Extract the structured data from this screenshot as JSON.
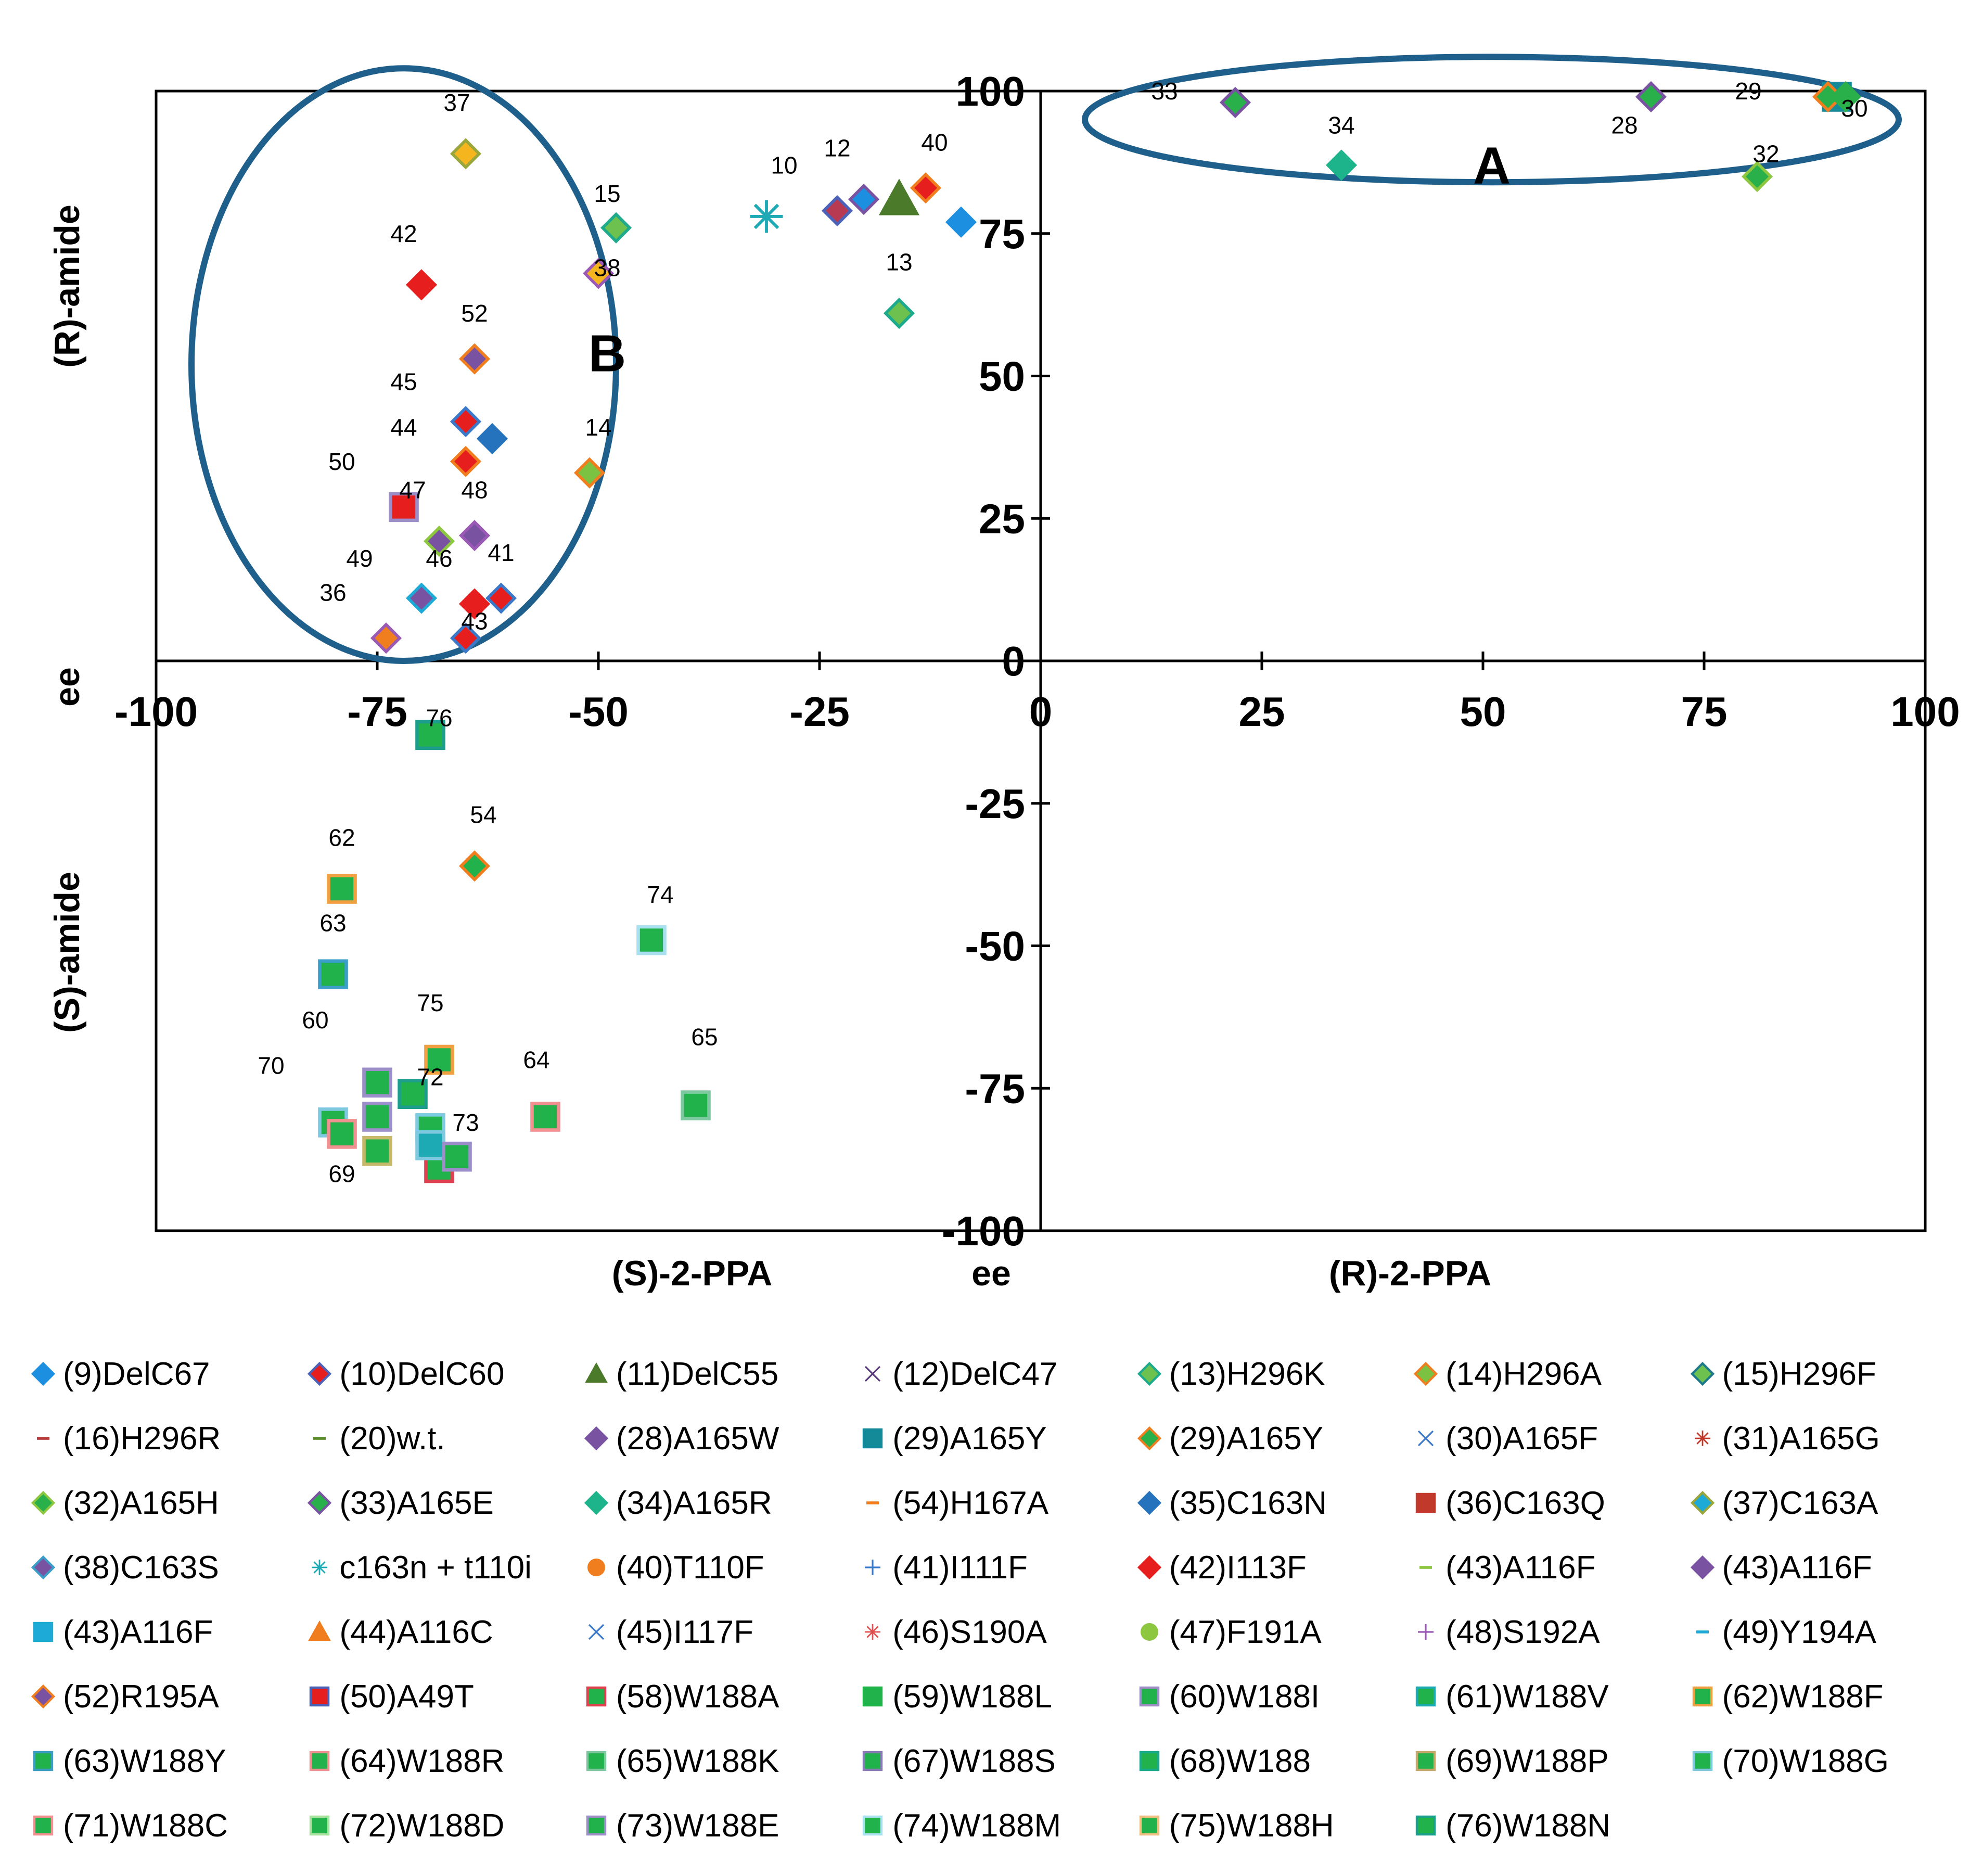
{
  "chart_data": {
    "type": "scatter",
    "xlim": [
      -100,
      100
    ],
    "ylim": [
      -100,
      100
    ],
    "x_ticks": [
      -100,
      -75,
      -50,
      -25,
      0,
      25,
      50,
      75,
      100
    ],
    "x_tick_labels": [
      "-100",
      "-75",
      "-50",
      "-25",
      "0",
      "25",
      "50",
      "75",
      "100"
    ],
    "y_ticks": [
      -100,
      -75,
      -50,
      -25,
      0,
      25,
      50,
      75,
      100
    ],
    "y_tick_labels": [
      "-100",
      "-75",
      "-50",
      "-25",
      "0",
      "25",
      "50",
      "75",
      "100"
    ],
    "grid": false,
    "x_axis_labels": {
      "left": "(S)-2-PPA",
      "center": "ee",
      "right": "(R)-2-PPA"
    },
    "y_axis_labels": {
      "top": "(R)-amide",
      "center": "ee",
      "bottom": "(S)-amide"
    },
    "regions": [
      {
        "label": "A",
        "center": [
          51,
          95
        ],
        "rx": 46,
        "ry": 11
      },
      {
        "label": "B",
        "center": [
          -72,
          52
        ],
        "rx": 24,
        "ry": 52
      }
    ],
    "points": [
      {
        "x": 22,
        "y": 98,
        "shape": "diamond",
        "fill": "#2ab04a",
        "stroke": "#7a52a2",
        "label": "33",
        "lx": 14,
        "ly": 100
      },
      {
        "x": 34,
        "y": 87,
        "shape": "diamond",
        "fill": "#1db38b",
        "stroke": "#1db38b",
        "label": "34",
        "lx": 34,
        "ly": 94
      },
      {
        "x": 69,
        "y": 99,
        "shape": "diamond",
        "fill": "#2ab04a",
        "stroke": "#7a52a2",
        "label": "28",
        "lx": 66,
        "ly": 94
      },
      {
        "x": 90,
        "y": 99,
        "shape": "square",
        "fill": "#148a99",
        "stroke": "#148a99",
        "label": "29",
        "lx": 80,
        "ly": 100
      },
      {
        "x": 89,
        "y": 99,
        "shape": "diamond",
        "fill": "#2ab04a",
        "stroke": "#f07d1e",
        "label": "",
        "lx": 0,
        "ly": 0
      },
      {
        "x": 91,
        "y": 99,
        "shape": "diamond",
        "fill": "#2ab04a",
        "stroke": "#2ab04a",
        "label": "30",
        "lx": 92,
        "ly": 97
      },
      {
        "x": 81,
        "y": 85,
        "shape": "diamond",
        "fill": "#2ab04a",
        "stroke": "#8dc63f",
        "label": "32",
        "lx": 82,
        "ly": 89
      },
      {
        "x": -65,
        "y": 89,
        "shape": "diamond",
        "fill": "#f5b51f",
        "stroke": "#9aa63a",
        "label": "37",
        "lx": -66,
        "ly": 98
      },
      {
        "x": -48,
        "y": 76,
        "shape": "diamond",
        "fill": "#6cc14f",
        "stroke": "#1daa8c",
        "label": "15",
        "lx": -49,
        "ly": 82
      },
      {
        "x": -50,
        "y": 68,
        "shape": "diamond",
        "fill": "#f5b51f",
        "stroke": "#9b59b6",
        "label": "38",
        "lx": -49,
        "ly": 69
      },
      {
        "x": -70,
        "y": 66,
        "shape": "diamond",
        "fill": "#e61e1e",
        "stroke": "#e61e1e",
        "label": "42",
        "lx": -72,
        "ly": 75
      },
      {
        "x": -64,
        "y": 53,
        "shape": "diamond",
        "fill": "#7a52a2",
        "stroke": "#f07d1e",
        "label": "52",
        "lx": -64,
        "ly": 61
      },
      {
        "x": -65,
        "y": 42,
        "shape": "diamond",
        "fill": "#e61e1e",
        "stroke": "#3a78c9",
        "label": "45",
        "lx": -72,
        "ly": 49
      },
      {
        "x": -62,
        "y": 39,
        "shape": "diamond",
        "fill": "#2673bd",
        "stroke": "#2673bd",
        "label": "44",
        "lx": -72,
        "ly": 41
      },
      {
        "x": -65,
        "y": 35,
        "shape": "diamond",
        "fill": "#e61e1e",
        "stroke": "#f07d1e",
        "label": "",
        "lx": 0,
        "ly": 0
      },
      {
        "x": -51,
        "y": 33,
        "shape": "diamond",
        "fill": "#7cc242",
        "stroke": "#f07d1e",
        "label": "14",
        "lx": -50,
        "ly": 41
      },
      {
        "x": -72,
        "y": 27,
        "shape": "square",
        "fill": "#e61e1e",
        "stroke": "#9b8ec9",
        "label": "50",
        "lx": -79,
        "ly": 35
      },
      {
        "x": -68,
        "y": 21,
        "shape": "diamond",
        "fill": "#7a52a2",
        "stroke": "#8dc63f",
        "label": "47",
        "lx": -71,
        "ly": 30
      },
      {
        "x": -64,
        "y": 22,
        "shape": "diamond",
        "fill": "#7a52a2",
        "stroke": "#9b59b6",
        "label": "48",
        "lx": -64,
        "ly": 30
      },
      {
        "x": -70,
        "y": 11,
        "shape": "diamond",
        "fill": "#7a52a2",
        "stroke": "#1daad6",
        "label": "49",
        "lx": -77,
        "ly": 18
      },
      {
        "x": -64,
        "y": 10,
        "shape": "diamond",
        "fill": "#e61e1e",
        "stroke": "#e61e1e",
        "label": "46",
        "lx": -68,
        "ly": 18
      },
      {
        "x": -61,
        "y": 11,
        "shape": "diamond",
        "fill": "#e61e1e",
        "stroke": "#3a78c9",
        "label": "41",
        "lx": -61,
        "ly": 19
      },
      {
        "x": -74,
        "y": 4,
        "shape": "diamond",
        "fill": "#f07d1e",
        "stroke": "#9b59b6",
        "label": "36",
        "lx": -80,
        "ly": 12
      },
      {
        "x": -65,
        "y": 4,
        "shape": "diamond",
        "fill": "#8dc63f",
        "stroke": "#c7b86a",
        "label": "",
        "lx": 0,
        "ly": 0
      },
      {
        "x": -65,
        "y": 4,
        "shape": "diamond",
        "fill": "#e61e1e",
        "stroke": "#3a78c9",
        "label": "43",
        "lx": -64,
        "ly": 7
      },
      {
        "x": -31,
        "y": 78,
        "shape": "star",
        "fill": "#1daab4",
        "stroke": "#1daab4",
        "label": "10",
        "lx": -29,
        "ly": 87
      },
      {
        "x": -23,
        "y": 79,
        "shape": "diamond",
        "fill": "#b83a52",
        "stroke": "#4b62b8",
        "label": "12",
        "lx": -23,
        "ly": 90
      },
      {
        "x": -20,
        "y": 81,
        "shape": "diamond",
        "fill": "#1d8fe0",
        "stroke": "#7a52a2",
        "label": "",
        "lx": 0,
        "ly": 0
      },
      {
        "x": -16,
        "y": 81,
        "shape": "triangle",
        "fill": "#4a7a2a",
        "stroke": "#4a7a2a",
        "label": "",
        "lx": 0,
        "ly": 0
      },
      {
        "x": -13,
        "y": 83,
        "shape": "diamond",
        "fill": "#e61e1e",
        "stroke": "#f07d1e",
        "label": "40",
        "lx": -12,
        "ly": 91
      },
      {
        "x": -9,
        "y": 77,
        "shape": "diamond",
        "fill": "#1d8fe0",
        "stroke": "#1d8fe0",
        "label": "",
        "lx": 0,
        "ly": 0
      },
      {
        "x": -16,
        "y": 61,
        "shape": "diamond",
        "fill": "#6cc14f",
        "stroke": "#1daa8c",
        "label": "13",
        "lx": -16,
        "ly": 70
      },
      {
        "x": -69,
        "y": -13,
        "shape": "square",
        "fill": "#21b24b",
        "stroke": "#1d9e8c",
        "label": "76",
        "lx": -68,
        "ly": -10
      },
      {
        "x": -64,
        "y": -36,
        "shape": "diamond",
        "fill": "#21b24b",
        "stroke": "#f07d1e",
        "label": "54",
        "lx": -63,
        "ly": -27
      },
      {
        "x": -79,
        "y": -40,
        "shape": "square",
        "fill": "#21b24b",
        "stroke": "#f0a040",
        "label": "62",
        "lx": -79,
        "ly": -31
      },
      {
        "x": -80,
        "y": -55,
        "shape": "square",
        "fill": "#21b24b",
        "stroke": "#3a9ec9",
        "label": "63",
        "lx": -80,
        "ly": -46
      },
      {
        "x": -44,
        "y": -49,
        "shape": "square",
        "fill": "#21b24b",
        "stroke": "#a8e0f0",
        "label": "74",
        "lx": -43,
        "ly": -41
      },
      {
        "x": -68,
        "y": -70,
        "shape": "square",
        "fill": "#21b24b",
        "stroke": "#f0a040",
        "label": "75",
        "lx": -69,
        "ly": -60
      },
      {
        "x": -39,
        "y": -78,
        "shape": "square",
        "fill": "#21b24b",
        "stroke": "#7ec8a0",
        "label": "65",
        "lx": -38,
        "ly": -66
      },
      {
        "x": -56,
        "y": -80,
        "shape": "square",
        "fill": "#21b24b",
        "stroke": "#f09090",
        "label": "64",
        "lx": -57,
        "ly": -70
      },
      {
        "x": -75,
        "y": -74,
        "shape": "square",
        "fill": "#21b24b",
        "stroke": "#9b8ec9",
        "label": "60",
        "lx": -82,
        "ly": -63
      },
      {
        "x": -71,
        "y": -76,
        "shape": "square",
        "fill": "#21b24b",
        "stroke": "#1d9e8c",
        "label": "72",
        "lx": -69,
        "ly": -73
      },
      {
        "x": -80,
        "y": -81,
        "shape": "square",
        "fill": "#21b24b",
        "stroke": "#7ec8e0",
        "label": "70",
        "lx": -87,
        "ly": -71
      },
      {
        "x": -75,
        "y": -80,
        "shape": "square",
        "fill": "#21b24b",
        "stroke": "#9b8ec9",
        "label": "",
        "lx": 0,
        "ly": 0
      },
      {
        "x": -79,
        "y": -83,
        "shape": "square",
        "fill": "#21b24b",
        "stroke": "#f09090",
        "label": "69",
        "lx": -79,
        "ly": -90
      },
      {
        "x": -75,
        "y": -86,
        "shape": "square",
        "fill": "#21b24b",
        "stroke": "#c7b86a",
        "label": "",
        "lx": 0,
        "ly": 0
      },
      {
        "x": -69,
        "y": -82,
        "shape": "square",
        "fill": "#21b24b",
        "stroke": "#7ec8e0",
        "label": "",
        "lx": 0,
        "ly": 0
      },
      {
        "x": -68,
        "y": -89,
        "shape": "square",
        "fill": "#21b24b",
        "stroke": "#e04050",
        "label": "",
        "lx": 0,
        "ly": 0
      },
      {
        "x": -69,
        "y": -85,
        "shape": "square",
        "fill": "#1daab4",
        "stroke": "#7ec8e0",
        "label": "",
        "lx": 0,
        "ly": 0
      },
      {
        "x": -66,
        "y": -87,
        "shape": "square",
        "fill": "#21b24b",
        "stroke": "#9b8ec9",
        "label": "73",
        "lx": -65,
        "ly": -81
      }
    ],
    "legend": [
      {
        "label": "(9)DelC67",
        "shape": "diamond",
        "fill": "#1d8fe0",
        "stroke": "#1d8fe0"
      },
      {
        "label": "(10)DelC60",
        "shape": "diamond",
        "fill": "#e61e1e",
        "stroke": "#4b62b8"
      },
      {
        "label": "(11)DelC55",
        "shape": "triangle",
        "fill": "#4a7a2a",
        "stroke": "#4a7a2a"
      },
      {
        "label": "(12)DelC47",
        "shape": "x",
        "fill": "#5a3a7a",
        "stroke": "#5a3a7a"
      },
      {
        "label": "(13)H296K",
        "shape": "diamond",
        "fill": "#6cc14f",
        "stroke": "#1daa8c"
      },
      {
        "label": "(14)H296A",
        "shape": "diamond",
        "fill": "#7cc242",
        "stroke": "#f07d1e"
      },
      {
        "label": "(15)H296F",
        "shape": "diamond",
        "fill": "#6cc14f",
        "stroke": "#1d7a8a"
      },
      {
        "label": "(16)H296R",
        "shape": "dash",
        "fill": "#b83a3a",
        "stroke": "#b83a3a"
      },
      {
        "label": "(20)w.t.",
        "shape": "dash",
        "fill": "#5a8a2a",
        "stroke": "#5a8a2a"
      },
      {
        "label": "(28)A165W",
        "shape": "diamond",
        "fill": "#7a52a2",
        "stroke": "#7a52a2"
      },
      {
        "label": "(29)A165Y",
        "shape": "square",
        "fill": "#148a99",
        "stroke": "#148a99"
      },
      {
        "label": "(29)A165Y",
        "shape": "diamond",
        "fill": "#2ab04a",
        "stroke": "#f07d1e"
      },
      {
        "label": "(30)A165F",
        "shape": "x",
        "fill": "#3a78c9",
        "stroke": "#3a78c9"
      },
      {
        "label": "(31)A165G",
        "shape": "star",
        "fill": "#c0392b",
        "stroke": "#c0392b"
      },
      {
        "label": "(32)A165H",
        "shape": "diamond",
        "fill": "#2ab04a",
        "stroke": "#8dc63f"
      },
      {
        "label": "(33)A165E",
        "shape": "diamond",
        "fill": "#2ab04a",
        "stroke": "#7a52a2"
      },
      {
        "label": "(34)A165R",
        "shape": "diamond",
        "fill": "#1db38b",
        "stroke": "#1db38b"
      },
      {
        "label": "(54)H167A",
        "shape": "dash",
        "fill": "#f07d1e",
        "stroke": "#f07d1e"
      },
      {
        "label": "(35)C163N",
        "shape": "diamond",
        "fill": "#2673bd",
        "stroke": "#2673bd"
      },
      {
        "label": "(36)C163Q",
        "shape": "square",
        "fill": "#c0392b",
        "stroke": "#c0392b"
      },
      {
        "label": "(37)C163A",
        "shape": "diamond",
        "fill": "#1daad6",
        "stroke": "#9aa63a"
      },
      {
        "label": "(38)C163S",
        "shape": "diamond",
        "fill": "#7a52a2",
        "stroke": "#3a9ec9"
      },
      {
        "label": "c163n + t110i",
        "shape": "star",
        "fill": "#1daab4",
        "stroke": "#1daab4"
      },
      {
        "label": "(40)T110F",
        "shape": "circle",
        "fill": "#f07d1e",
        "stroke": "#f07d1e"
      },
      {
        "label": "(41)I111F",
        "shape": "plus",
        "fill": "#3a78c9",
        "stroke": "#3a78c9"
      },
      {
        "label": "(42)I113F",
        "shape": "diamond",
        "fill": "#e61e1e",
        "stroke": "#e61e1e"
      },
      {
        "label": "(43)A116F",
        "shape": "dash",
        "fill": "#8dc63f",
        "stroke": "#8dc63f"
      },
      {
        "label": "(43)A116F",
        "shape": "diamond",
        "fill": "#7a52a2",
        "stroke": "#7a52a2"
      },
      {
        "label": "(43)A116F",
        "shape": "square",
        "fill": "#1daad6",
        "stroke": "#1daad6"
      },
      {
        "label": "(44)A116C",
        "shape": "triangle",
        "fill": "#f07d1e",
        "stroke": "#f07d1e"
      },
      {
        "label": "(45)I117F",
        "shape": "x",
        "fill": "#3a78c9",
        "stroke": "#3a78c9"
      },
      {
        "label": "(46)S190A",
        "shape": "star",
        "fill": "#e05050",
        "stroke": "#e05050"
      },
      {
        "label": "(47)F191A",
        "shape": "circle",
        "fill": "#8dc63f",
        "stroke": "#8dc63f"
      },
      {
        "label": "(48)S192A",
        "shape": "plus",
        "fill": "#9b59b6",
        "stroke": "#9b59b6"
      },
      {
        "label": "(49)Y194A",
        "shape": "dash",
        "fill": "#1daad6",
        "stroke": "#1daad6"
      },
      {
        "label": "(52)R195A",
        "shape": "diamond",
        "fill": "#7a52a2",
        "stroke": "#f07d1e"
      },
      {
        "label": "(50)A49T",
        "shape": "square",
        "fill": "#e61e1e",
        "stroke": "#4b62b8"
      },
      {
        "label": "(58)W188A",
        "shape": "square",
        "fill": "#21b24b",
        "stroke": "#e04050"
      },
      {
        "label": "(59)W188L",
        "shape": "square",
        "fill": "#21b24b",
        "stroke": "#21b24b"
      },
      {
        "label": "(60)W188I",
        "shape": "square",
        "fill": "#21b24b",
        "stroke": "#9b8ec9"
      },
      {
        "label": "(61)W188V",
        "shape": "square",
        "fill": "#21b24b",
        "stroke": "#1daab4"
      },
      {
        "label": "(62)W188F",
        "shape": "square",
        "fill": "#21b24b",
        "stroke": "#f0a040"
      },
      {
        "label": "(63)W188Y",
        "shape": "square",
        "fill": "#21b24b",
        "stroke": "#3a9ec9"
      },
      {
        "label": "(64)W188R",
        "shape": "square",
        "fill": "#21b24b",
        "stroke": "#f09090"
      },
      {
        "label": "(65)W188K",
        "shape": "square",
        "fill": "#21b24b",
        "stroke": "#7ec8a0"
      },
      {
        "label": "(67)W188S",
        "shape": "square",
        "fill": "#21b24b",
        "stroke": "#8a7ab8"
      },
      {
        "label": "(68)W188",
        "shape": "square",
        "fill": "#21b24b",
        "stroke": "#1daa8c"
      },
      {
        "label": "(69)W188P",
        "shape": "square",
        "fill": "#21b24b",
        "stroke": "#c7a86a"
      },
      {
        "label": "(70)W188G",
        "shape": "square",
        "fill": "#21b24b",
        "stroke": "#7ec8e0"
      },
      {
        "label": "(71)W188C",
        "shape": "square",
        "fill": "#21b24b",
        "stroke": "#f09090"
      },
      {
        "label": "(72)W188D",
        "shape": "square",
        "fill": "#21b24b",
        "stroke": "#a8e0a0"
      },
      {
        "label": "(73)W188E",
        "shape": "square",
        "fill": "#21b24b",
        "stroke": "#9b8ec9"
      },
      {
        "label": "(74)W188M",
        "shape": "square",
        "fill": "#21b24b",
        "stroke": "#a8e0f0"
      },
      {
        "label": "(75)W188H",
        "shape": "square",
        "fill": "#21b24b",
        "stroke": "#f0c080"
      },
      {
        "label": "(76)W188N",
        "shape": "square",
        "fill": "#21b24b",
        "stroke": "#1d9e8c"
      }
    ]
  }
}
